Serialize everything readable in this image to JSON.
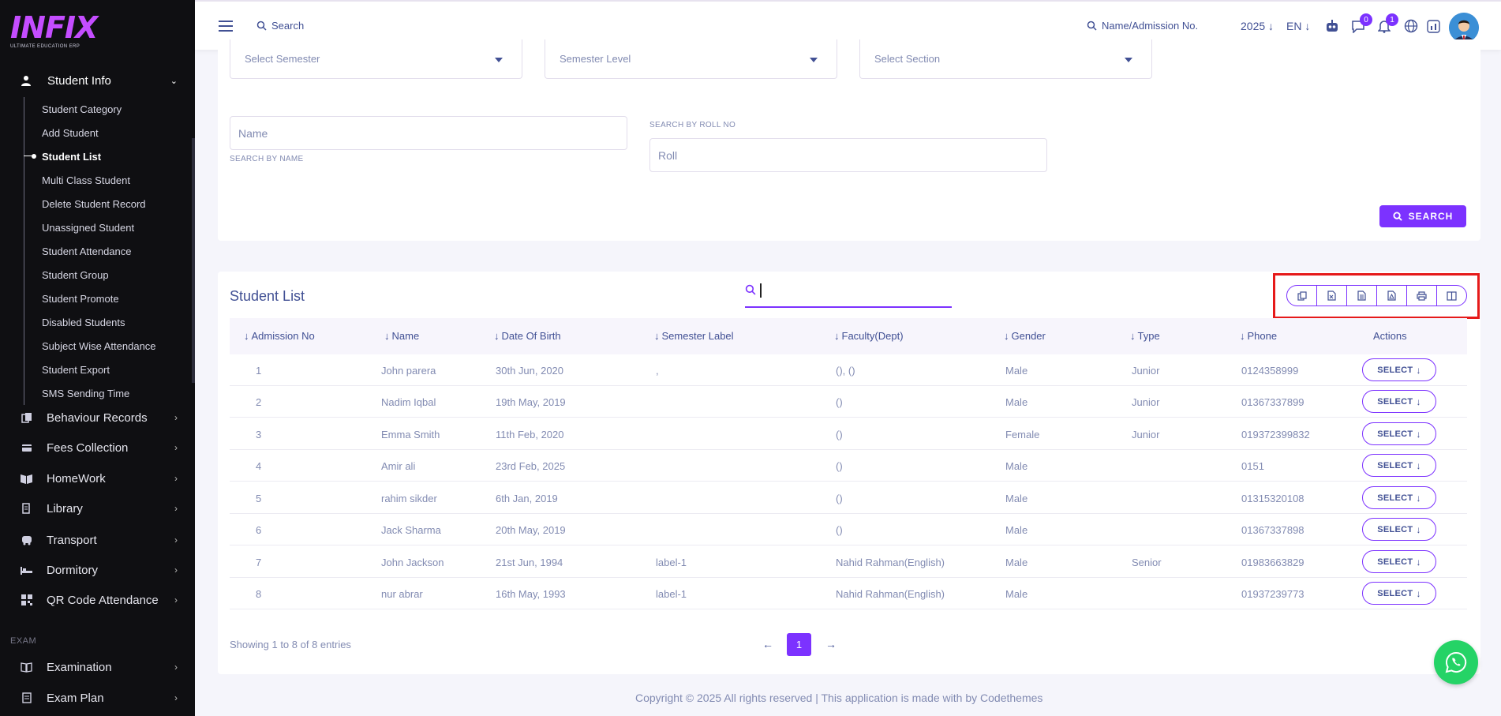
{
  "app": {
    "logo_text": "INFIX",
    "logo_tagline": "ULTIMATE EDUCATION ERP"
  },
  "sidebar": {
    "main_item": "Student Info",
    "sub_items": [
      "Student Category",
      "Add Student",
      "Student List",
      "Multi Class Student",
      "Delete Student Record",
      "Unassigned Student",
      "Student Attendance",
      "Student Group",
      "Student Promote",
      "Disabled Students",
      "Subject Wise Attendance",
      "Student Export",
      "SMS Sending Time"
    ],
    "active_sub_item": "Student List",
    "menu": [
      {
        "label": "Behaviour Records",
        "icon": "behaviour-icon"
      },
      {
        "label": "Fees Collection",
        "icon": "fees-icon"
      },
      {
        "label": "HomeWork",
        "icon": "homework-icon"
      },
      {
        "label": "Library",
        "icon": "library-icon"
      },
      {
        "label": "Transport",
        "icon": "transport-icon"
      },
      {
        "label": "Dormitory",
        "icon": "dormitory-icon"
      },
      {
        "label": "QR Code Attendance",
        "icon": "qr-code-icon"
      }
    ],
    "section_label": "EXAM",
    "exam_menu": [
      {
        "label": "Examination",
        "icon": "examination-icon"
      },
      {
        "label": "Exam Plan",
        "icon": "exam-plan-icon"
      }
    ]
  },
  "header": {
    "search_label": "Search",
    "admission_search_label": "Name/Admission No.",
    "year": "2025",
    "language": "EN",
    "messages_badge": "0",
    "notifications_badge": "1"
  },
  "filters": {
    "semester_placeholder": "Select Semester",
    "semester_level_placeholder": "Semester Level",
    "section_placeholder": "Select Section",
    "name_placeholder": "Name",
    "name_label": "SEARCH BY NAME",
    "roll_label": "SEARCH BY ROLL NO",
    "roll_placeholder": "Roll",
    "search_button": "SEARCH"
  },
  "student_list": {
    "title": "Student List",
    "columns": [
      "Admission No",
      "Name",
      "Date Of Birth",
      "Semester Label",
      "Faculty(Dept)",
      "Gender",
      "Type",
      "Phone",
      "Actions"
    ],
    "rows": [
      {
        "admission_no": "1",
        "name": "John parera",
        "dob": "30th Jun, 2020",
        "semester_label": ",",
        "faculty": "(), ()",
        "gender": "Male",
        "type": "Junior",
        "phone": "0124358999",
        "action": "SELECT"
      },
      {
        "admission_no": "2",
        "name": "Nadim Iqbal",
        "dob": "19th May, 2019",
        "semester_label": "",
        "faculty": "()",
        "gender": "Male",
        "type": "Junior",
        "phone": "01367337899",
        "action": "SELECT"
      },
      {
        "admission_no": "3",
        "name": "Emma Smith",
        "dob": "11th Feb, 2020",
        "semester_label": "",
        "faculty": "()",
        "gender": "Female",
        "type": "Junior",
        "phone": "019372399832",
        "action": "SELECT"
      },
      {
        "admission_no": "4",
        "name": "Amir ali",
        "dob": "23rd Feb, 2025",
        "semester_label": "",
        "faculty": "()",
        "gender": "Male",
        "type": "",
        "phone": "0151",
        "action": "SELECT"
      },
      {
        "admission_no": "5",
        "name": "rahim sikder",
        "dob": "6th Jan, 2019",
        "semester_label": "",
        "faculty": "()",
        "gender": "Male",
        "type": "",
        "phone": "01315320108",
        "action": "SELECT"
      },
      {
        "admission_no": "6",
        "name": "Jack Sharma",
        "dob": "20th May, 2019",
        "semester_label": "",
        "faculty": "()",
        "gender": "Male",
        "type": "",
        "phone": "01367337898",
        "action": "SELECT"
      },
      {
        "admission_no": "7",
        "name": "John Jackson",
        "dob": "21st Jun, 1994",
        "semester_label": "label-1",
        "faculty": "Nahid Rahman(English)",
        "gender": "Male",
        "type": "Senior",
        "phone": "01983663829",
        "action": "SELECT"
      },
      {
        "admission_no": "8",
        "name": "nur abrar",
        "dob": "16th May, 1993",
        "semester_label": "label-1",
        "faculty": "Nahid Rahman(English)",
        "gender": "Male",
        "type": "",
        "phone": "01937239773",
        "action": "SELECT"
      }
    ],
    "export_buttons": [
      "copy-icon",
      "excel-icon",
      "csv-icon",
      "pdf-icon",
      "print-icon",
      "columns-icon"
    ],
    "showing_text": "Showing 1 to 8 of 8 entries",
    "current_page": "1"
  },
  "footer": {
    "text": "Copyright © 2025 All rights reserved | This application is made with by Codethemes"
  },
  "colors": {
    "accent": "#7c32ff",
    "text": "#415094",
    "muted": "#828bb2",
    "sidebar_bg": "#0f0f12",
    "highlight": "#e61a1a",
    "whatsapp": "#25d366"
  }
}
